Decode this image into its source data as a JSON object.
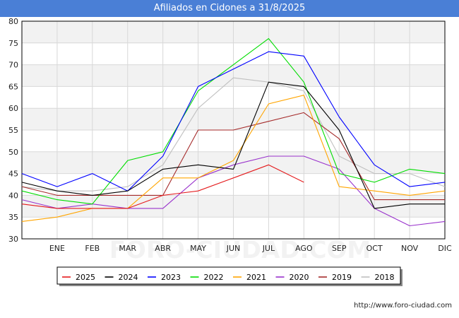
{
  "chart_data": {
    "type": "line",
    "title": "Afiliados en Cidones a 31/8/2025",
    "xlabel": "",
    "ylabel": "",
    "categories": [
      "",
      "ENE",
      "FEB",
      "MAR",
      "ABR",
      "MAY",
      "JUN",
      "JUL",
      "AGO",
      "SEP",
      "OCT",
      "NOV",
      "DIC"
    ],
    "ylim": [
      30,
      80
    ],
    "yticks": [
      30,
      35,
      40,
      45,
      50,
      55,
      60,
      65,
      70,
      75,
      80
    ],
    "grid": true,
    "legend_position": "bottom",
    "series": [
      {
        "name": "2025",
        "color": "#e41a1c",
        "values": [
          38,
          37,
          37,
          37,
          40,
          41,
          44,
          47,
          43,
          null,
          null,
          null,
          null
        ]
      },
      {
        "name": "2024",
        "color": "#000000",
        "values": [
          43,
          41,
          40,
          41,
          46,
          47,
          46,
          66,
          65,
          55,
          37,
          38,
          38
        ]
      },
      {
        "name": "2023",
        "color": "#0000ff",
        "values": [
          45,
          42,
          45,
          41,
          49,
          65,
          69,
          73,
          72,
          58,
          47,
          42,
          43
        ]
      },
      {
        "name": "2022",
        "color": "#00dd00",
        "values": [
          41,
          39,
          38,
          48,
          50,
          64,
          70,
          76,
          66,
          45,
          43,
          46,
          45
        ]
      },
      {
        "name": "2021",
        "color": "#ffa500",
        "values": [
          34,
          35,
          37,
          37,
          44,
          44,
          48,
          61,
          63,
          42,
          41,
          40,
          41
        ]
      },
      {
        "name": "2020",
        "color": "#9932cc",
        "values": [
          39,
          37,
          38,
          37,
          37,
          44,
          47,
          49,
          49,
          46,
          37,
          33,
          34
        ]
      },
      {
        "name": "2019",
        "color": "#a52a2a",
        "values": [
          42,
          40,
          40,
          40,
          40,
          55,
          55,
          57,
          59,
          53,
          39,
          39,
          39
        ]
      },
      {
        "name": "2018",
        "color": "#c0c0c0",
        "values": [
          42,
          41,
          41,
          42,
          47,
          60,
          67,
          66,
          64,
          49,
          45,
          45,
          42
        ]
      }
    ]
  },
  "watermark": "FORO-CIUDAD.COM",
  "source_text": "http://www.foro-ciudad.com"
}
